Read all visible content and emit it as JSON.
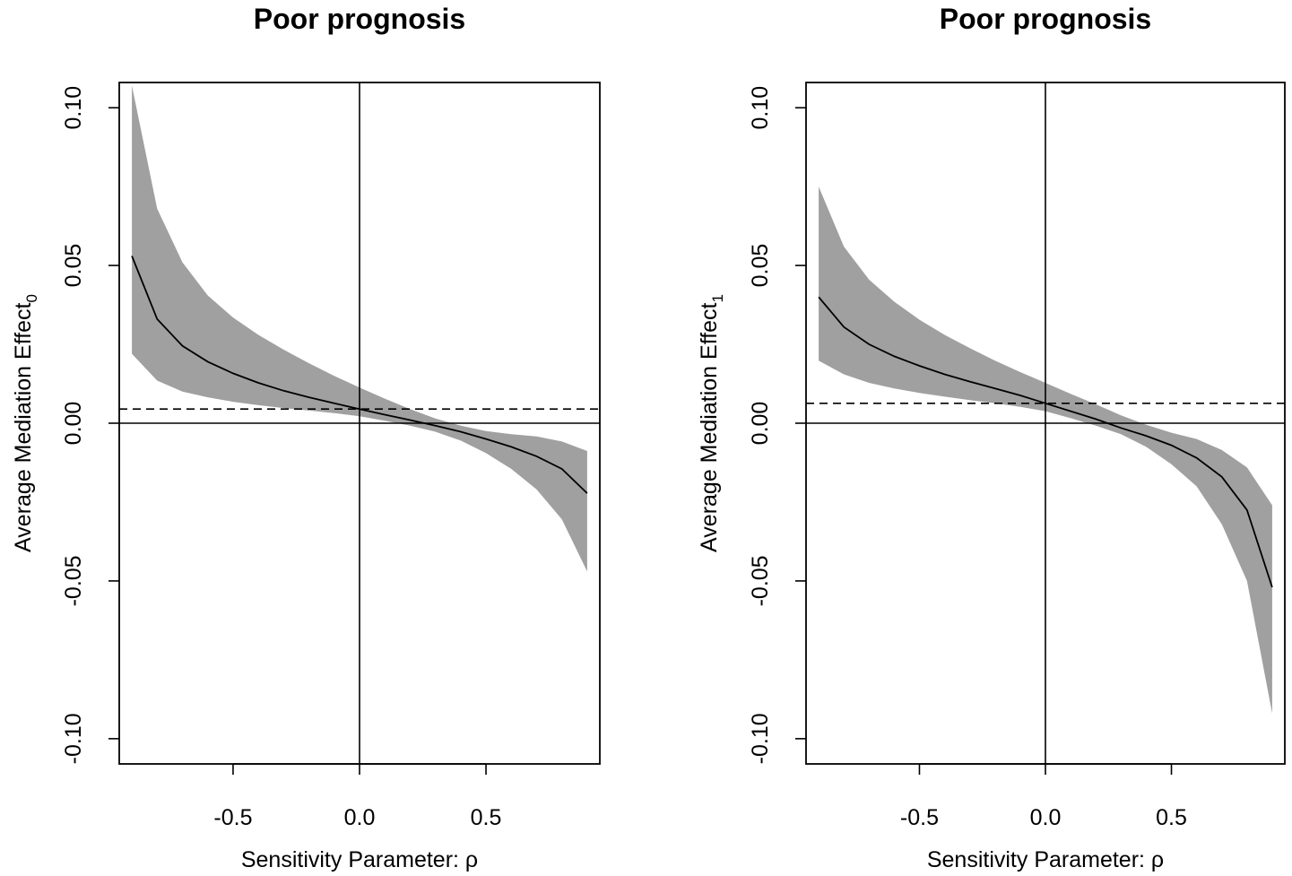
{
  "chart_data": [
    {
      "type": "line",
      "title": "Poor prognosis",
      "xlabel": "Sensitivity Parameter: ρ",
      "ylabel": "Average Mediation Effect",
      "ylabel_subscript": "0",
      "xlim": [
        -0.95,
        0.95
      ],
      "ylim": [
        -0.108,
        0.108
      ],
      "x_ticks": [
        -0.5,
        0.0,
        0.5
      ],
      "x_tick_labels": [
        "-0.5",
        "0.0",
        "0.5"
      ],
      "y_ticks": [
        -0.1,
        -0.05,
        0.0,
        0.05,
        0.1
      ],
      "y_tick_labels": [
        "-0.10",
        "-0.05",
        "0.00",
        "0.05",
        "0.10"
      ],
      "reference_lines": {
        "vertical_x": 0.0,
        "horizontal_y": 0.0,
        "dashed_y": 0.0045
      },
      "x": [
        -0.9,
        -0.8,
        -0.7,
        -0.6,
        -0.5,
        -0.4,
        -0.3,
        -0.2,
        -0.1,
        0.0,
        0.1,
        0.2,
        0.3,
        0.4,
        0.5,
        0.6,
        0.7,
        0.8,
        0.9
      ],
      "series": [
        {
          "name": "estimate",
          "values": [
            0.053,
            0.033,
            0.0245,
            0.0195,
            0.0158,
            0.0128,
            0.0103,
            0.0082,
            0.0063,
            0.0045,
            0.0027,
            0.001,
            -0.0008,
            -0.0027,
            -0.005,
            -0.0075,
            -0.0105,
            -0.0145,
            -0.0222
          ]
        },
        {
          "name": "ci_lower",
          "values": [
            0.022,
            0.0135,
            0.01,
            0.0082,
            0.0068,
            0.0057,
            0.0048,
            0.004,
            0.0032,
            0.0022,
            0.0008,
            -0.0008,
            -0.0027,
            -0.0055,
            -0.0095,
            -0.0145,
            -0.021,
            -0.0305,
            -0.047
          ]
        },
        {
          "name": "ci_upper",
          "values": [
            0.107,
            0.068,
            0.051,
            0.0405,
            0.0335,
            0.028,
            0.0233,
            0.019,
            0.015,
            0.0113,
            0.0078,
            0.0045,
            0.0015,
            -0.0008,
            -0.0025,
            -0.0035,
            -0.0042,
            -0.0058,
            -0.0088
          ]
        }
      ]
    },
    {
      "type": "line",
      "title": "Poor prognosis",
      "xlabel": "Sensitivity Parameter: ρ",
      "ylabel": "Average Mediation Effect",
      "ylabel_subscript": "1",
      "xlim": [
        -0.95,
        0.95
      ],
      "ylim": [
        -0.108,
        0.108
      ],
      "x_ticks": [
        -0.5,
        0.0,
        0.5
      ],
      "x_tick_labels": [
        "-0.5",
        "0.0",
        "0.5"
      ],
      "y_ticks": [
        -0.1,
        -0.05,
        0.0,
        0.05,
        0.1
      ],
      "y_tick_labels": [
        "-0.10",
        "-0.05",
        "0.00",
        "0.05",
        "0.10"
      ],
      "reference_lines": {
        "vertical_x": 0.0,
        "horizontal_y": 0.0,
        "dashed_y": 0.0063
      },
      "x": [
        -0.9,
        -0.8,
        -0.7,
        -0.6,
        -0.5,
        -0.4,
        -0.3,
        -0.2,
        -0.1,
        0.0,
        0.1,
        0.2,
        0.3,
        0.4,
        0.5,
        0.6,
        0.7,
        0.8,
        0.9
      ],
      "series": [
        {
          "name": "estimate",
          "values": [
            0.04,
            0.0305,
            0.025,
            0.0212,
            0.0182,
            0.0155,
            0.0132,
            0.011,
            0.0088,
            0.0063,
            0.0038,
            0.0013,
            -0.0015,
            -0.004,
            -0.007,
            -0.011,
            -0.017,
            -0.0275,
            -0.052
          ]
        },
        {
          "name": "ci_lower",
          "values": [
            0.0198,
            0.0155,
            0.0128,
            0.011,
            0.0096,
            0.0084,
            0.0073,
            0.0063,
            0.0052,
            0.0038,
            0.0016,
            -0.0008,
            -0.0035,
            -0.0075,
            -0.013,
            -0.02,
            -0.032,
            -0.05,
            -0.092
          ]
        },
        {
          "name": "ci_upper",
          "values": [
            0.075,
            0.056,
            0.0455,
            0.0385,
            0.0328,
            0.028,
            0.0238,
            0.0198,
            0.0162,
            0.0128,
            0.0093,
            0.006,
            0.0025,
            -0.0005,
            -0.003,
            -0.005,
            -0.0085,
            -0.014,
            -0.026
          ]
        }
      ]
    }
  ]
}
